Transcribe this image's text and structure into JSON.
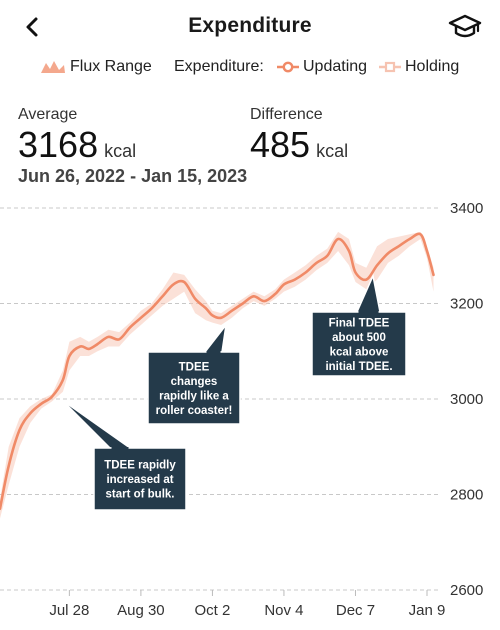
{
  "header": {
    "title": "Expenditure",
    "back_icon": "chevron-left-icon",
    "action_icon": "graduation-cap-icon"
  },
  "legend": {
    "flux_label": "Flux Range",
    "series_prefix": "Expenditure:",
    "updating_label": "Updating",
    "holding_label": "Holding",
    "colors": {
      "line": "#f08a67",
      "band": "#f8c9b8",
      "holding": "#f4b6a0"
    }
  },
  "stats": {
    "average": {
      "label": "Average",
      "value": "3168",
      "unit": "kcal"
    },
    "difference": {
      "label": "Difference",
      "value": "485",
      "unit": "kcal"
    },
    "date_range": "Jun 26, 2022 - Jan 15, 2023"
  },
  "chart_data": {
    "type": "line",
    "x_unit": "date",
    "x_ticks": [
      "Jul 28",
      "Aug 30",
      "Oct 2",
      "Nov 4",
      "Dec 7",
      "Jan 9"
    ],
    "y_ticks": [
      "3400",
      "3200",
      "3000",
      "2800",
      "2600"
    ],
    "ylim": [
      2600,
      3400
    ],
    "grid": true,
    "series": [
      {
        "name": "Updating",
        "x": [
          "2022-06-26",
          "2022-06-30",
          "2022-07-05",
          "2022-07-10",
          "2022-07-15",
          "2022-07-20",
          "2022-07-25",
          "2022-07-28",
          "2022-08-02",
          "2022-08-06",
          "2022-08-10",
          "2022-08-15",
          "2022-08-20",
          "2022-08-25",
          "2022-08-30",
          "2022-09-04",
          "2022-09-09",
          "2022-09-14",
          "2022-09-19",
          "2022-09-24",
          "2022-09-29",
          "2022-10-02",
          "2022-10-06",
          "2022-10-11",
          "2022-10-16",
          "2022-10-21",
          "2022-10-26",
          "2022-10-31",
          "2022-11-04",
          "2022-11-09",
          "2022-11-14",
          "2022-11-19",
          "2022-11-24",
          "2022-11-29",
          "2022-12-04",
          "2022-12-07",
          "2022-12-12",
          "2022-12-17",
          "2022-12-22",
          "2022-12-27",
          "2023-01-01",
          "2023-01-06",
          "2023-01-09",
          "2023-01-12"
        ],
        "values": [
          2770,
          2860,
          2935,
          2970,
          2990,
          3005,
          3040,
          3090,
          3110,
          3105,
          3115,
          3130,
          3125,
          3150,
          3170,
          3190,
          3215,
          3240,
          3245,
          3210,
          3190,
          3175,
          3170,
          3185,
          3200,
          3215,
          3205,
          3220,
          3240,
          3250,
          3265,
          3285,
          3300,
          3335,
          3310,
          3265,
          3250,
          3280,
          3305,
          3320,
          3335,
          3345,
          3310,
          3260
        ]
      }
    ],
    "flux_range": {
      "upper": [
        2790,
        2900,
        2960,
        2985,
        3000,
        3010,
        3060,
        3120,
        3130,
        3120,
        3130,
        3145,
        3140,
        3160,
        3185,
        3200,
        3230,
        3265,
        3260,
        3230,
        3205,
        3185,
        3180,
        3195,
        3210,
        3225,
        3215,
        3230,
        3250,
        3265,
        3280,
        3300,
        3315,
        3350,
        3335,
        3285,
        3275,
        3320,
        3335,
        3340,
        3345,
        3350,
        3320,
        3275
      ],
      "lower": [
        2750,
        2820,
        2900,
        2950,
        2980,
        2995,
        3015,
        3060,
        3090,
        3090,
        3100,
        3110,
        3110,
        3135,
        3155,
        3175,
        3195,
        3210,
        3225,
        3180,
        3165,
        3160,
        3155,
        3170,
        3190,
        3205,
        3195,
        3210,
        3225,
        3235,
        3250,
        3270,
        3285,
        3310,
        3280,
        3245,
        3230,
        3250,
        3285,
        3300,
        3320,
        3335,
        3295,
        3225
      ]
    },
    "annotations": [
      {
        "lines": [
          "TDEE rapidly",
          "increased at",
          "start of bulk."
        ]
      },
      {
        "lines": [
          "TDEE",
          "changes",
          "rapidly like a",
          "roller coaster!"
        ]
      },
      {
        "lines": [
          "Final TDEE",
          "about 500",
          "kcal above",
          "initial TDEE."
        ]
      }
    ]
  }
}
